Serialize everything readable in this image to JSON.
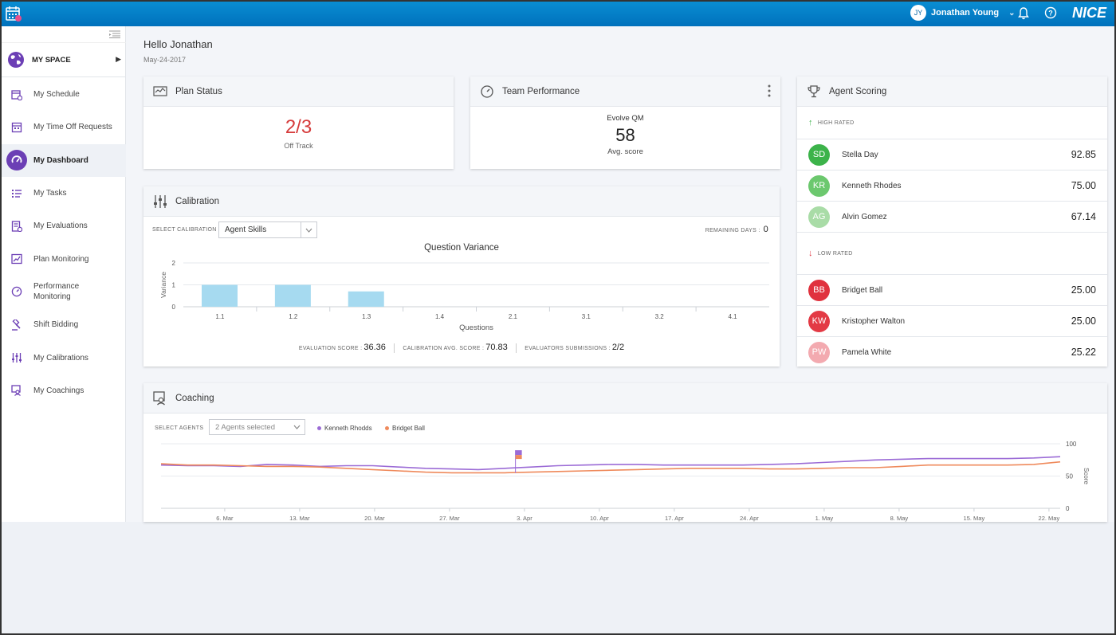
{
  "topbar": {
    "user_initials": "JY",
    "user_name": "Jonathan Young",
    "brand": "NICE",
    "icons": [
      "calendar-icon",
      "chevron-down-icon",
      "bell-icon",
      "help-icon"
    ]
  },
  "sidebar": {
    "myspace_label": "MY SPACE",
    "items": [
      {
        "label": "My Schedule",
        "icon": "schedule-icon"
      },
      {
        "label": "My Time Off Requests",
        "icon": "time-off-icon"
      },
      {
        "label": "My Dashboard",
        "icon": "dashboard-gauge-icon",
        "active": true
      },
      {
        "label": "My Tasks",
        "icon": "tasks-icon"
      },
      {
        "label": "My Evaluations",
        "icon": "evaluations-icon"
      },
      {
        "label": "Plan Monitoring",
        "icon": "plan-monitoring-icon"
      },
      {
        "label": "Performance Monitoring",
        "icon": "performance-icon"
      },
      {
        "label": "Shift Bidding",
        "icon": "shift-bidding-icon"
      },
      {
        "label": "My Calibrations",
        "icon": "calibrations-icon"
      },
      {
        "label": "My Coachings",
        "icon": "coachings-icon"
      }
    ],
    "accent": "#6c3fb5"
  },
  "header": {
    "greeting": "Hello Jonathan",
    "date": "May-24-2017"
  },
  "plan_status": {
    "title": "Plan Status",
    "value": "2/3",
    "label": "Off Track"
  },
  "team_performance": {
    "title": "Team Performance",
    "source": "Evolve QM",
    "value": "58",
    "label": "Avg. score"
  },
  "calibration": {
    "title": "Calibration",
    "select_label": "SELECT CALIBRATION",
    "select_value": "Agent Skills",
    "remaining_label": "REMAINING DAYS :",
    "remaining_value": "0",
    "eval_label": "EVALUATION SCORE :",
    "eval_value": "36.36",
    "avg_label": "CALIBRATION AVG. SCORE :",
    "avg_value": "70.83",
    "subs_label": "EVALUATORS SUBMISSIONS :",
    "subs_value": "2/2"
  },
  "agent_scoring": {
    "title": "Agent Scoring",
    "high_label": "HIGH RATED",
    "low_label": "LOW RATED",
    "high": [
      {
        "initials": "SD",
        "name": "Stella Day",
        "score": "92.85",
        "color": "#3cb34a"
      },
      {
        "initials": "KR",
        "name": "Kenneth Rhodes",
        "score": "75.00",
        "color": "#6cc86e"
      },
      {
        "initials": "AG",
        "name": "Alvin Gomez",
        "score": "67.14",
        "color": "#a9dca7"
      }
    ],
    "low": [
      {
        "initials": "BB",
        "name": "Bridget Ball",
        "score": "25.00",
        "color": "#e0323e"
      },
      {
        "initials": "KW",
        "name": "Kristopher Walton",
        "score": "25.00",
        "color": "#e33a45"
      },
      {
        "initials": "PW",
        "name": "Pamela White",
        "score": "25.22",
        "color": "#f3aab0"
      }
    ]
  },
  "coaching": {
    "title": "Coaching",
    "select_label": "SELECT AGENTS",
    "select_value": "2 Agents selected",
    "legend": [
      {
        "name": "Kenneth Rhodds",
        "color": "#9b6bd6"
      },
      {
        "name": "Bridget Ball",
        "color": "#ef8a5c"
      }
    ]
  },
  "chart_data": [
    {
      "type": "bar",
      "title": "Question Variance",
      "xlabel": "Questions",
      "ylabel": "Variance",
      "categories": [
        "1.1",
        "1.2",
        "1.3",
        "1.4",
        "2.1",
        "3.1",
        "3.2",
        "4.1"
      ],
      "values": [
        1,
        1,
        0.7,
        0,
        0,
        0,
        0,
        0
      ],
      "ylim": [
        0,
        2
      ],
      "yticks": [
        "0",
        "1",
        "2"
      ],
      "bar_color": "#a6daf0",
      "grid": true
    },
    {
      "type": "line",
      "ylabel": "Score",
      "ylim": [
        0,
        100
      ],
      "yticks": [
        "0",
        "50",
        "100"
      ],
      "x_ticks": [
        "6. Mar",
        "13. Mar",
        "20. Mar",
        "27. Mar",
        "3. Apr",
        "10. Apr",
        "17. Apr",
        "24. Apr",
        "1. May",
        "8. May",
        "15. May",
        "22. May"
      ],
      "series": [
        {
          "name": "Kenneth Rhodds",
          "color": "#9b6bd6",
          "values": [
            67,
            66,
            66,
            65,
            68,
            67,
            65,
            66,
            66,
            64,
            62,
            61,
            60,
            62,
            64,
            66,
            67,
            68,
            68,
            67,
            67,
            67,
            67,
            68,
            69,
            71,
            73,
            75,
            76,
            77,
            77,
            77,
            77,
            78,
            80
          ]
        },
        {
          "name": "Bridget Ball",
          "color": "#ef8a5c",
          "values": [
            69,
            67,
            67,
            66,
            65,
            65,
            64,
            62,
            60,
            58,
            56,
            55,
            55,
            55,
            56,
            57,
            58,
            59,
            60,
            61,
            62,
            62,
            62,
            61,
            61,
            62,
            63,
            63,
            65,
            67,
            67,
            67,
            67,
            68,
            72
          ]
        }
      ],
      "grid": true
    }
  ]
}
